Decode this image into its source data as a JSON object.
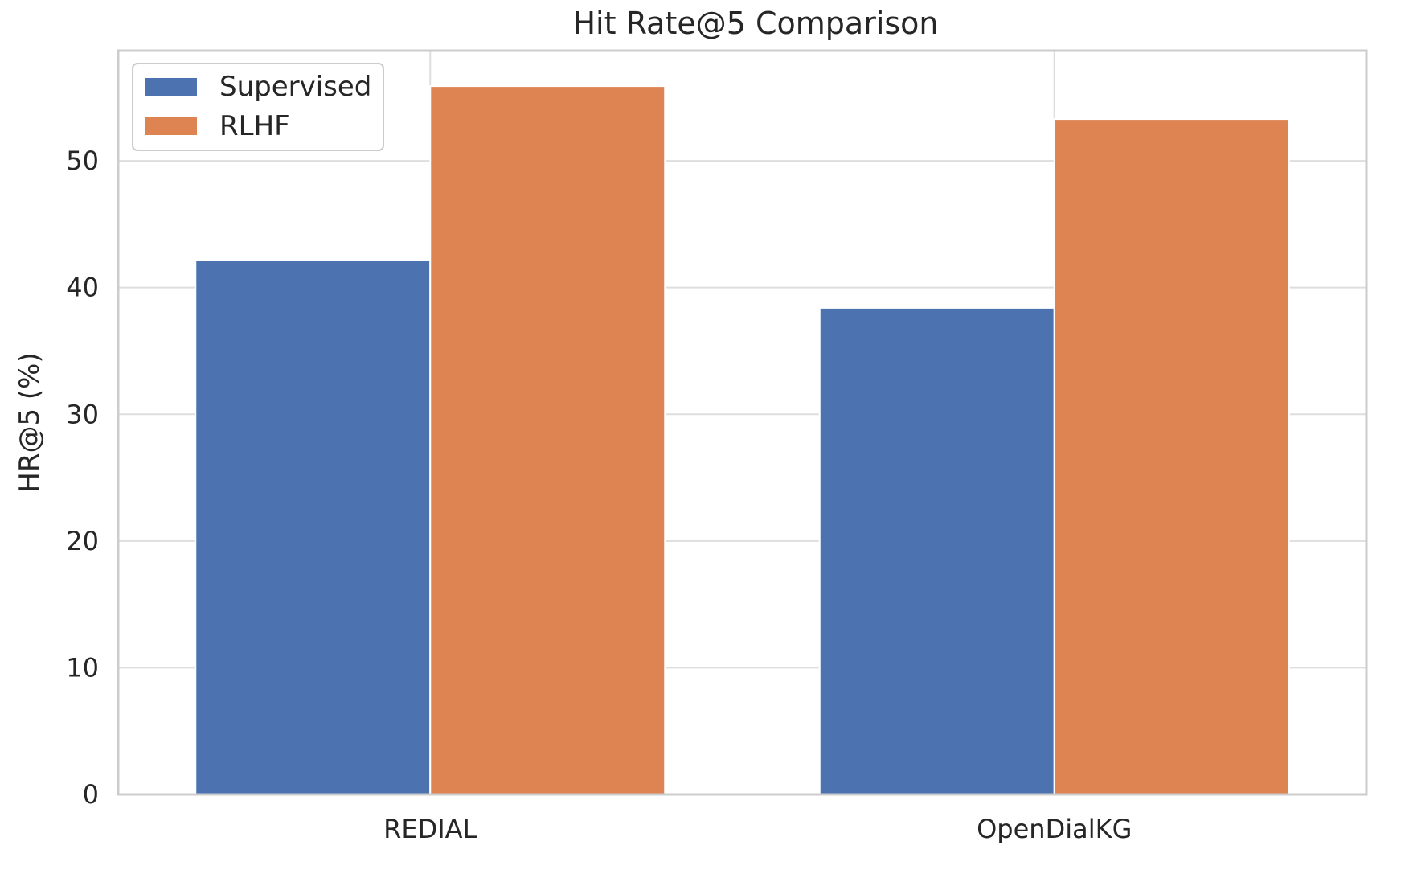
{
  "chart_data": {
    "type": "bar",
    "title": "Hit Rate@5 Comparison",
    "xlabel": "",
    "ylabel": "HR@5 (%)",
    "categories": [
      "REDIAL",
      "OpenDialKG"
    ],
    "series": [
      {
        "name": "Supervised",
        "values": [
          42.2,
          38.4
        ],
        "color": "#4c72b0"
      },
      {
        "name": "RLHF",
        "values": [
          55.9,
          53.3
        ],
        "color": "#dd8452"
      }
    ],
    "ylim": [
      0,
      58.7
    ],
    "yticks": [
      "0",
      "10",
      "20",
      "30",
      "40",
      "50"
    ],
    "grid": true,
    "legend_position": "top-left"
  }
}
